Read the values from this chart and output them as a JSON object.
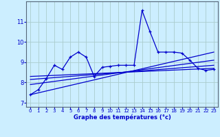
{
  "xlabel": "Graphe des températures (°c)",
  "background_color": "#cceeff",
  "grid_color": "#aacccc",
  "line_color": "#0000cc",
  "xlim": [
    -0.5,
    23.5
  ],
  "ylim": [
    6.8,
    12.0
  ],
  "yticks": [
    7,
    8,
    9,
    10,
    11
  ],
  "xticks": [
    0,
    1,
    2,
    3,
    4,
    5,
    6,
    7,
    8,
    9,
    10,
    11,
    12,
    13,
    14,
    15,
    16,
    17,
    18,
    19,
    20,
    21,
    22,
    23
  ],
  "series": {
    "main1": {
      "x": [
        0,
        1,
        2,
        3,
        4,
        5,
        6,
        7,
        8,
        9,
        10,
        11,
        12,
        13,
        14,
        15,
        16,
        17,
        18,
        19,
        20,
        21,
        22,
        23
      ],
      "y": [
        7.4,
        7.65,
        8.2,
        8.85,
        8.65,
        9.25,
        9.5,
        9.25,
        8.3,
        8.75,
        8.8,
        8.85,
        8.85,
        8.85,
        11.55,
        10.5,
        9.5,
        9.5,
        9.5,
        9.45,
        9.1,
        8.7,
        8.6,
        8.65
      ]
    },
    "main2": {
      "x": [
        0,
        1,
        2,
        3,
        4,
        5,
        6,
        7,
        8,
        9,
        10,
        11,
        12,
        13,
        14,
        15,
        16,
        17,
        18,
        19,
        20,
        21,
        22,
        23
      ],
      "y": [
        7.4,
        7.65,
        8.2,
        8.85,
        8.65,
        9.25,
        9.5,
        9.25,
        8.3,
        8.75,
        8.8,
        8.85,
        8.85,
        8.85,
        11.55,
        10.5,
        9.5,
        9.5,
        9.5,
        9.45,
        9.1,
        8.7,
        8.6,
        8.65
      ]
    },
    "trend1": {
      "x": [
        0,
        23
      ],
      "y": [
        7.4,
        9.5
      ]
    },
    "trend2": {
      "x": [
        0,
        23
      ],
      "y": [
        7.9,
        9.1
      ]
    },
    "trend3": {
      "x": [
        0,
        23
      ],
      "y": [
        8.15,
        8.85
      ]
    },
    "trend4": {
      "x": [
        0,
        23
      ],
      "y": [
        8.3,
        8.7
      ]
    }
  }
}
